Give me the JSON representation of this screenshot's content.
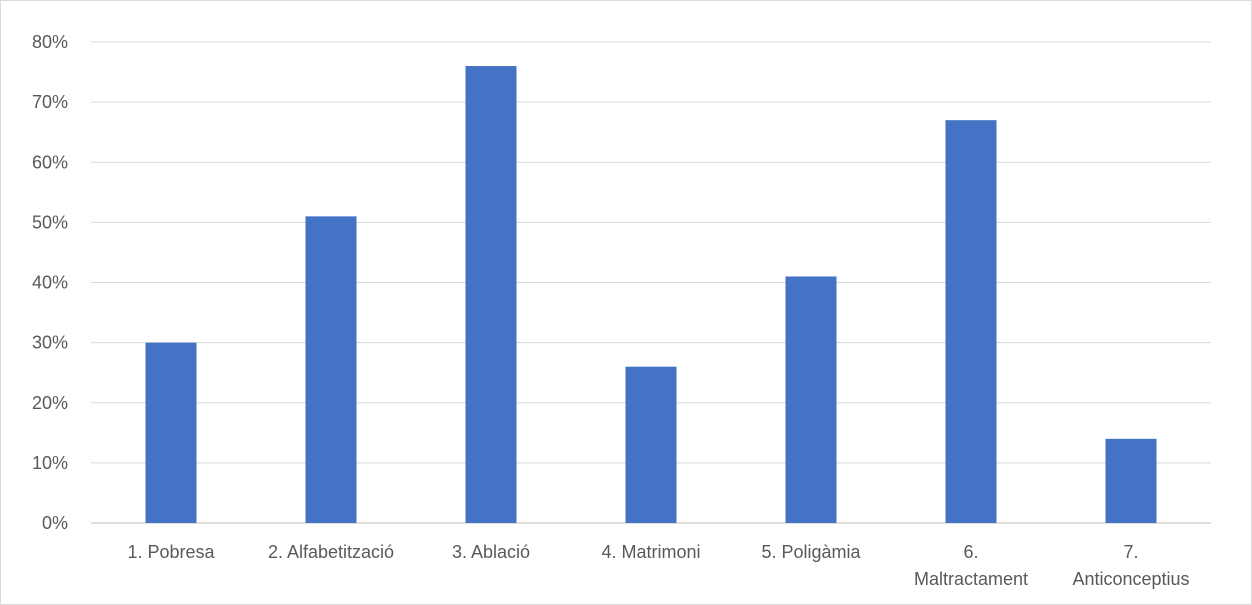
{
  "chart_data": {
    "type": "bar",
    "categories": [
      [
        "1. Pobresa"
      ],
      [
        "2. Alfabetització"
      ],
      [
        "3. Ablació"
      ],
      [
        "4. Matrimoni"
      ],
      [
        "5. Poligàmia"
      ],
      [
        "6.",
        "Maltractament"
      ],
      [
        "7.",
        "Anticonceptius"
      ]
    ],
    "values": [
      30,
      51,
      76,
      26,
      41,
      67,
      14
    ],
    "y_ticks": [
      "0%",
      "10%",
      "20%",
      "30%",
      "40%",
      "50%",
      "60%",
      "70%",
      "80%"
    ],
    "ylim": [
      0,
      80
    ],
    "grid": true,
    "legend": "none",
    "colors": {
      "bar": "#4472C4"
    }
  }
}
